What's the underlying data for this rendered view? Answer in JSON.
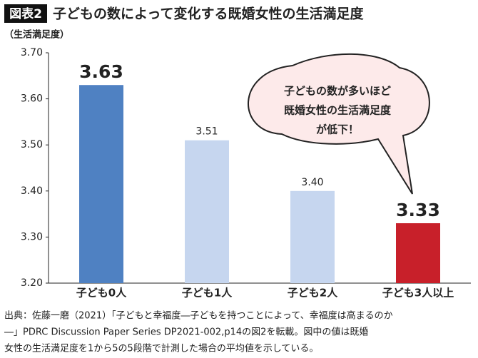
{
  "chart_data": {
    "type": "bar",
    "label": "図表2",
    "title": "子どもの数によって変化する既婚女性の生活満足度",
    "y_label": "（生活満足度）",
    "categories": [
      "子ども0人",
      "子ども1人",
      "子ども2人",
      "子ども3人以上"
    ],
    "values": [
      3.63,
      3.51,
      3.4,
      3.33
    ],
    "value_labels": [
      "3.63",
      "3.51",
      "3.40",
      "3.33"
    ],
    "colors": [
      "#4f81c2",
      "#c6d6ef",
      "#c6d6ef",
      "#c8202a"
    ],
    "ylim": [
      3.2,
      3.7
    ],
    "yticks": [
      {
        "value": 3.2,
        "label": "3.20"
      },
      {
        "value": 3.3,
        "label": "3.30"
      },
      {
        "value": 3.4,
        "label": "3.40"
      },
      {
        "value": 3.5,
        "label": "3.50"
      },
      {
        "value": 3.6,
        "label": "3.60"
      },
      {
        "value": 3.7,
        "label": "3.70"
      }
    ],
    "callout": [
      "子どもの数が多いほど",
      "既婚女性の生活満足度",
      "が低下！"
    ],
    "source": [
      "出典：佐藤一磨（2021）「子どもと幸福度―子どもを持つことによって、幸福度は高まるのか",
      "―」PDRC Discussion Paper Series DP2021-002,p14の図2を転載。図中の値は既婚",
      "女性の生活満足度を1から5の5段階で計測した場合の平均値を示している。"
    ]
  }
}
